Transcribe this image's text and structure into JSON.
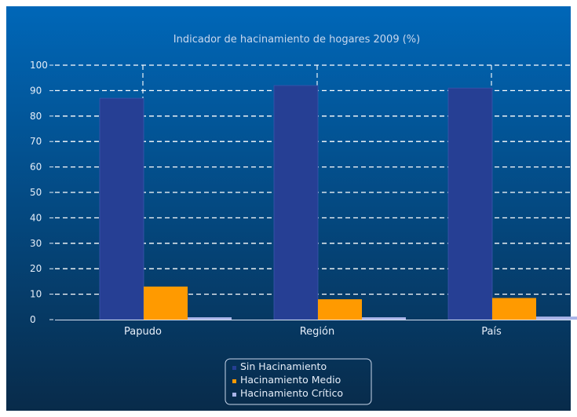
{
  "chart_data": {
    "type": "bar",
    "title": "Indicador de hacinamiento de hogares 2009 (%)",
    "categories": [
      "Papudo",
      "Región",
      "País"
    ],
    "series": [
      {
        "name": "Sin Hacinamiento",
        "values": [
          87,
          92,
          91
        ]
      },
      {
        "name": "Hacinamiento Medio",
        "values": [
          13,
          8,
          8.5
        ]
      },
      {
        "name": "Hacinamiento Crítico",
        "values": [
          0.5,
          0.8,
          1.2
        ]
      }
    ],
    "ylim": [
      0,
      100
    ],
    "yticks": [
      0,
      10,
      20,
      30,
      40,
      50,
      60,
      70,
      80,
      90,
      100
    ],
    "grid": true,
    "legend_position": "bottom-center",
    "colors": {
      "background_top": "#0067b8",
      "background_bottom": "#082b4a",
      "series": [
        "#263f94",
        "#ff9a00",
        "#a9b4e8"
      ],
      "grid": "#ffffff"
    }
  }
}
